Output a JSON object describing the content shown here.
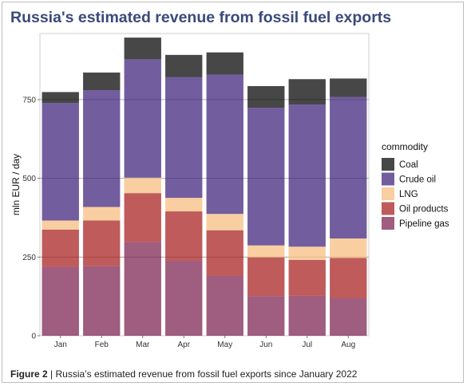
{
  "title": "Russia's estimated revenue from fossil fuel exports",
  "caption": {
    "label": "Figure 2",
    "separator": " | ",
    "text": "Russia’s estimated revenue from fossil fuel exports since January 2022"
  },
  "chart_data": {
    "type": "bar",
    "stacked": true,
    "title": "Russia's estimated revenue from fossil fuel exports",
    "xlabel": "",
    "ylabel": "mln EUR / day",
    "ylim": [
      0,
      960
    ],
    "yticks": [
      0,
      250,
      500,
      750
    ],
    "grid": true,
    "legend": {
      "title": "commodity",
      "placement": "right"
    },
    "categories": [
      "Jan",
      "Feb",
      "Mar",
      "Apr",
      "May",
      "Jun",
      "Jul",
      "Aug"
    ],
    "series": [
      {
        "name": "Pipeline gas",
        "color": "#7a1f4f",
        "values": [
          218,
          221,
          298,
          238,
          190,
          126,
          127,
          119
        ]
      },
      {
        "name": "Oil products",
        "color": "#a61c1c",
        "values": [
          119,
          145,
          155,
          157,
          145,
          123,
          114,
          128
        ]
      },
      {
        "name": "LNG",
        "color": "#f7bb7d",
        "values": [
          29,
          43,
          49,
          43,
          52,
          38,
          42,
          62
        ]
      },
      {
        "name": "Crude oil",
        "color": "#3b1f7a",
        "values": [
          373,
          371,
          376,
          383,
          442,
          437,
          451,
          449
        ]
      },
      {
        "name": "Coal",
        "color": "#000000",
        "values": [
          35,
          56,
          69,
          71,
          71,
          69,
          81,
          59
        ]
      }
    ],
    "legend_order": [
      "Coal",
      "Crude oil",
      "LNG",
      "Oil products",
      "Pipeline gas"
    ]
  }
}
